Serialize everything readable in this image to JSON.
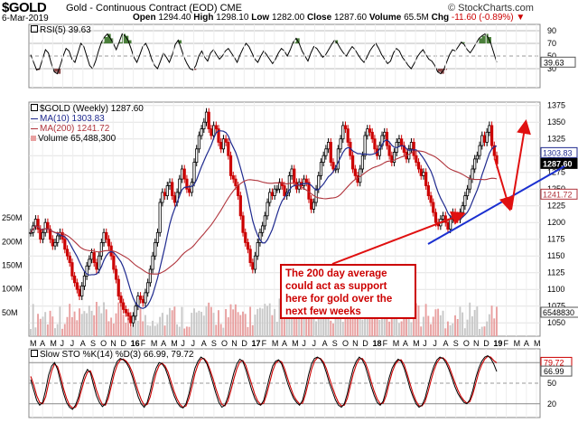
{
  "header": {
    "symbol": "$GOLD",
    "name": "Gold - Continuous Contract (EOD)",
    "exchange": "CME",
    "date": "6-Mar-2019",
    "open_label": "Open",
    "open": "1294.40",
    "high_label": "High",
    "high": "1298.10",
    "low_label": "Low",
    "low": "1282.00",
    "close_label": "Close",
    "close": "1287.60",
    "volume_label": "Volume",
    "volume": "65.5M",
    "chg_label": "Chg",
    "chg": "-11.60 (-0.89%)",
    "chg_arrow": "▼",
    "brand": "© StockCharts.com"
  },
  "legends": {
    "rsi": "RSI(5) 39.63",
    "price": "$GOLD (Weekly) 1287.60",
    "ma10": "MA(10) 1303.83",
    "ma200": "MA(200) 1241.72",
    "volume": "Volume 65,488,300",
    "sto": "Slow STO %K(14) %D(3) 66.99, 79.72"
  },
  "callout": {
    "lines": [
      "The 200 day average",
      "could act as support",
      "here for gold over the",
      "next few weeks"
    ]
  },
  "colors": {
    "up": "#000000",
    "down": "#cc0000",
    "ma10": "#1f2a8f",
    "ma200": "#b0343c",
    "rsi_over": "#4a7f3a",
    "rsi_under": "#8b4a4a",
    "volume": "#e8a0a0",
    "arrow": "#e01010",
    "trend": "#1a2fd0"
  },
  "chart_data": [
    {
      "id": "rsi",
      "type": "line",
      "title": "RSI(5)",
      "ylim": [
        0,
        100
      ],
      "yticks": [
        90,
        70,
        50,
        30
      ],
      "last": 39.63,
      "values": [
        52,
        40,
        28,
        30,
        45,
        60,
        55,
        38,
        25,
        22,
        35,
        50,
        62,
        58,
        45,
        40,
        55,
        70,
        65,
        50,
        35,
        30,
        42,
        58,
        72,
        80,
        85,
        78,
        70,
        60,
        72,
        85,
        82,
        75,
        62,
        48,
        40,
        52,
        65,
        70,
        60,
        45,
        35,
        30,
        42,
        55,
        48,
        40,
        52,
        68,
        75,
        62,
        48,
        38,
        30,
        28,
        35,
        50,
        58,
        48,
        42,
        55,
        60,
        52,
        45,
        50,
        58,
        62,
        55,
        48,
        40,
        52,
        62,
        70,
        65,
        55,
        45,
        40,
        50,
        58,
        52,
        45,
        38,
        45,
        55,
        62,
        58,
        50,
        60,
        72,
        78,
        70,
        58,
        50,
        42,
        55,
        65,
        62,
        55,
        48,
        52,
        60,
        68,
        75,
        70,
        62,
        55,
        50,
        58,
        65,
        60,
        52,
        45,
        40,
        48,
        58,
        65,
        70,
        62,
        52,
        45,
        38,
        42,
        55,
        62,
        58,
        48,
        42,
        35,
        30,
        38,
        48,
        55,
        60,
        52,
        45,
        42,
        35,
        25,
        22,
        28,
        40,
        52,
        60,
        58,
        65,
        72,
        68,
        60,
        55,
        62,
        70,
        78,
        82,
        85,
        80,
        70,
        55,
        40
      ]
    },
    {
      "id": "price",
      "type": "line",
      "title": "$GOLD (Weekly)",
      "ylim": [
        1030,
        1380
      ],
      "yticks": [
        1375,
        1350,
        1325,
        1300,
        1275,
        1250,
        1225,
        1200,
        1175,
        1150,
        1125,
        1100,
        1075,
        1050
      ],
      "x_labels": [
        "M",
        "A",
        "M",
        "J",
        "J",
        "A",
        "S",
        "O",
        "N",
        "D",
        "16",
        "F",
        "M",
        "A",
        "M",
        "J",
        "J",
        "A",
        "S",
        "O",
        "N",
        "D",
        "17",
        "F",
        "M",
        "A",
        "M",
        "J",
        "J",
        "A",
        "S",
        "O",
        "N",
        "D",
        "18",
        "F",
        "M",
        "A",
        "M",
        "J",
        "J",
        "A",
        "S",
        "O",
        "N",
        "D",
        "19",
        "F",
        "M",
        "A",
        "M"
      ],
      "close": [
        1185,
        1195,
        1205,
        1190,
        1175,
        1185,
        1200,
        1190,
        1175,
        1165,
        1170,
        1180,
        1185,
        1175,
        1160,
        1150,
        1140,
        1120,
        1110,
        1100,
        1090,
        1105,
        1120,
        1135,
        1145,
        1155,
        1140,
        1130,
        1150,
        1170,
        1185,
        1175,
        1165,
        1150,
        1130,
        1115,
        1090,
        1080,
        1070,
        1065,
        1060,
        1050,
        1060,
        1075,
        1090,
        1085,
        1080,
        1095,
        1110,
        1130,
        1150,
        1170,
        1185,
        1230,
        1245,
        1240,
        1255,
        1260,
        1240,
        1230,
        1245,
        1265,
        1280,
        1265,
        1250,
        1245,
        1260,
        1290,
        1310,
        1330,
        1340,
        1350,
        1365,
        1340,
        1330,
        1345,
        1340,
        1320,
        1310,
        1325,
        1320,
        1300,
        1270,
        1265,
        1255,
        1240,
        1210,
        1185,
        1170,
        1160,
        1140,
        1130,
        1150,
        1170,
        1185,
        1195,
        1210,
        1230,
        1245,
        1240,
        1250,
        1250,
        1260,
        1255,
        1240,
        1245,
        1270,
        1280,
        1260,
        1250,
        1260,
        1255,
        1265,
        1260,
        1235,
        1220,
        1230,
        1250,
        1270,
        1290,
        1300,
        1310,
        1320,
        1290,
        1280,
        1280,
        1310,
        1325,
        1345,
        1340,
        1320,
        1300,
        1280,
        1270,
        1260,
        1280,
        1300,
        1330,
        1340,
        1335,
        1325,
        1310,
        1300,
        1315,
        1330,
        1335,
        1315,
        1300,
        1290,
        1305,
        1320,
        1325,
        1315,
        1305,
        1295,
        1310,
        1320,
        1300,
        1290,
        1280,
        1270,
        1275,
        1255,
        1240,
        1230,
        1215,
        1200,
        1195,
        1205,
        1210,
        1200,
        1190,
        1205,
        1215,
        1210,
        1205,
        1215,
        1225,
        1240,
        1250,
        1265,
        1280,
        1295,
        1300,
        1315,
        1330,
        1320,
        1335,
        1345,
        1315,
        1300,
        1287.6
      ],
      "ma10_last": 1303.83,
      "ma200_last": 1241.72,
      "last": 1287.6
    },
    {
      "id": "volume",
      "type": "bar",
      "title": "Volume",
      "yticks_label": [
        "250M",
        "200M",
        "150M",
        "100M",
        "50M"
      ],
      "ylim": [
        0,
        300
      ],
      "unit": "M",
      "last": "65488300"
    },
    {
      "id": "sto",
      "type": "line",
      "title": "Slow STO %K(14) %D(3)",
      "ylim": [
        0,
        100
      ],
      "yticks": [
        80,
        50,
        20
      ],
      "k_last": 66.99,
      "d_last": 79.72,
      "k": [
        55,
        40,
        25,
        18,
        22,
        40,
        62,
        75,
        80,
        70,
        52,
        35,
        22,
        15,
        12,
        18,
        30,
        48,
        62,
        70,
        65,
        48,
        32,
        22,
        16,
        20,
        35,
        55,
        72,
        82,
        86,
        84,
        80,
        72,
        60,
        45,
        30,
        20,
        15,
        22,
        38,
        58,
        72,
        80,
        78,
        72,
        60,
        45,
        32,
        22,
        16,
        14,
        20,
        35,
        55,
        72,
        82,
        88,
        85,
        78,
        65,
        50,
        35,
        22,
        15,
        18,
        30,
        48,
        65,
        78,
        85,
        82,
        70,
        55,
        40,
        28,
        20,
        18,
        25,
        42,
        60,
        75,
        82,
        84,
        78,
        65,
        50,
        38,
        28,
        22,
        18,
        25,
        42,
        62,
        78,
        86,
        88,
        85,
        78,
        65,
        50,
        38,
        26,
        18,
        15,
        20,
        35,
        55,
        72,
        82,
        88,
        84,
        75,
        60,
        45,
        32,
        22,
        18,
        24,
        40,
        58,
        72,
        80,
        85,
        82,
        72,
        58,
        42,
        30,
        20,
        15,
        18,
        28,
        45,
        62,
        75,
        84,
        88,
        86,
        80,
        70,
        58,
        45,
        35,
        28,
        22,
        20,
        26,
        40,
        58,
        72,
        82,
        88,
        90,
        86,
        78,
        66.99
      ],
      "d": [
        60,
        48,
        32,
        22,
        20,
        30,
        50,
        68,
        78,
        74,
        60,
        42,
        28,
        18,
        14,
        15,
        24,
        40,
        55,
        66,
        68,
        56,
        40,
        28,
        19,
        18,
        28,
        46,
        64,
        77,
        84,
        85,
        82,
        76,
        66,
        52,
        38,
        26,
        18,
        19,
        30,
        48,
        65,
        76,
        79,
        75,
        66,
        52,
        38,
        27,
        19,
        15,
        17,
        28,
        45,
        64,
        77,
        85,
        86,
        81,
        70,
        57,
        42,
        29,
        19,
        17,
        24,
        39,
        56,
        71,
        81,
        83,
        76,
        62,
        48,
        34,
        24,
        19,
        21,
        34,
        51,
        68,
        79,
        83,
        81,
        71,
        57,
        44,
        32,
        25,
        20,
        21,
        34,
        52,
        70,
        82,
        87,
        86,
        81,
        71,
        57,
        44,
        32,
        22,
        17,
        18,
        28,
        46,
        64,
        77,
        85,
        86,
        80,
        68,
        52,
        38,
        27,
        20,
        21,
        32,
        50,
        66,
        77,
        83,
        84,
        77,
        64,
        49,
        35,
        24,
        17,
        17,
        23,
        37,
        54,
        69,
        80,
        86,
        87,
        83,
        75,
        63,
        51,
        40,
        31,
        25,
        21,
        23,
        34,
        50,
        66,
        77,
        85,
        89,
        88,
        83,
        79.72
      ]
    }
  ]
}
